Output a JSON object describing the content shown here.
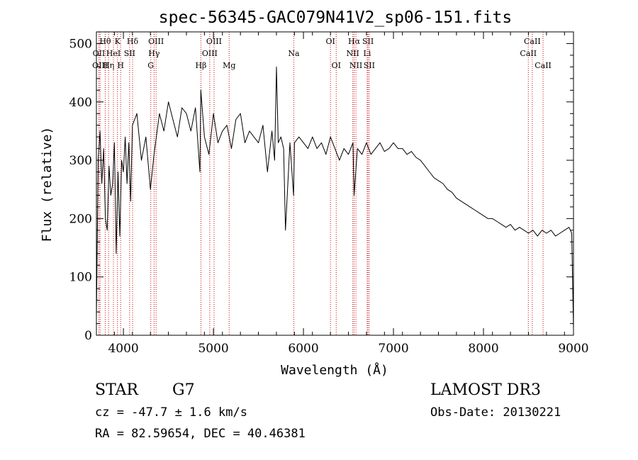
{
  "chart_data": {
    "type": "line",
    "title": "spec-56345-GAC079N41V2_sp06-151.fits",
    "xlabel": "Wavelength (Å)",
    "ylabel": "Flux (relative)",
    "xlim": [
      3700,
      9000
    ],
    "ylim": [
      0,
      520
    ],
    "xticks": [
      4000,
      5000,
      6000,
      7000,
      8000,
      9000
    ],
    "yticks": [
      0,
      100,
      200,
      300,
      400,
      500
    ],
    "grid": false,
    "line_color": "#000000",
    "marker_color": "#cc0000",
    "spectrum": {
      "name": "flux",
      "x": [
        3700,
        3720,
        3740,
        3760,
        3780,
        3800,
        3820,
        3840,
        3860,
        3880,
        3900,
        3920,
        3940,
        3960,
        3980,
        4000,
        4020,
        4040,
        4060,
        4080,
        4100,
        4150,
        4200,
        4250,
        4300,
        4340,
        4400,
        4450,
        4500,
        4550,
        4600,
        4650,
        4700,
        4750,
        4800,
        4850,
        4860,
        4900,
        4950,
        5000,
        5050,
        5100,
        5150,
        5200,
        5250,
        5300,
        5350,
        5400,
        5450,
        5500,
        5550,
        5600,
        5650,
        5680,
        5700,
        5720,
        5750,
        5780,
        5800,
        5850,
        5890,
        5900,
        5950,
        6000,
        6050,
        6100,
        6150,
        6200,
        6250,
        6300,
        6350,
        6400,
        6450,
        6500,
        6550,
        6563,
        6600,
        6650,
        6700,
        6750,
        6800,
        6850,
        6900,
        6950,
        7000,
        7050,
        7100,
        7150,
        7200,
        7250,
        7300,
        7350,
        7400,
        7450,
        7500,
        7550,
        7600,
        7650,
        7700,
        7750,
        7800,
        7850,
        7900,
        7950,
        8000,
        8050,
        8100,
        8150,
        8200,
        8250,
        8300,
        8350,
        8400,
        8450,
        8500,
        8550,
        8600,
        8650,
        8700,
        8750,
        8800,
        8850,
        8900,
        8950,
        8980,
        9000
      ],
      "values": [
        30,
        300,
        350,
        260,
        320,
        200,
        180,
        290,
        240,
        260,
        330,
        140,
        280,
        170,
        300,
        280,
        340,
        260,
        330,
        230,
        360,
        380,
        300,
        340,
        250,
        310,
        380,
        350,
        400,
        370,
        340,
        390,
        380,
        350,
        390,
        280,
        420,
        340,
        310,
        380,
        330,
        350,
        360,
        320,
        370,
        380,
        330,
        350,
        340,
        330,
        360,
        280,
        350,
        300,
        460,
        330,
        340,
        320,
        180,
        330,
        240,
        330,
        340,
        330,
        320,
        340,
        320,
        330,
        310,
        340,
        320,
        300,
        320,
        310,
        330,
        240,
        320,
        310,
        330,
        310,
        320,
        330,
        315,
        320,
        330,
        320,
        320,
        310,
        315,
        305,
        300,
        290,
        280,
        270,
        265,
        260,
        250,
        245,
        235,
        230,
        225,
        220,
        215,
        210,
        205,
        200,
        200,
        195,
        190,
        185,
        190,
        180,
        185,
        180,
        175,
        180,
        170,
        180,
        175,
        180,
        170,
        175,
        180,
        185,
        175,
        10
      ]
    },
    "line_markers": [
      {
        "label": "Hθ",
        "wavelength": 3798,
        "row": 1
      },
      {
        "label": "OII",
        "wavelength": 3727,
        "row": 2
      },
      {
        "label": "OIII",
        "wavelength": 3741,
        "row": 3
      },
      {
        "label": "K",
        "wavelength": 3934,
        "row": 1
      },
      {
        "label": "HeI",
        "wavelength": 3889,
        "row": 2
      },
      {
        "label": "Hη",
        "wavelength": 3835,
        "row": 3
      },
      {
        "label": "Hδ",
        "wavelength": 4102,
        "row": 1
      },
      {
        "label": "SII",
        "wavelength": 4069,
        "row": 2
      },
      {
        "label": "H",
        "wavelength": 3969,
        "row": 3
      },
      {
        "label": "OIII",
        "wavelength": 4363,
        "row": 1
      },
      {
        "label": "Hγ",
        "wavelength": 4341,
        "row": 2
      },
      {
        "label": "G",
        "wavelength": 4304,
        "row": 3
      },
      {
        "label": "OIII",
        "wavelength": 5007,
        "row": 1
      },
      {
        "label": "OIII",
        "wavelength": 4959,
        "row": 2
      },
      {
        "label": "Hβ",
        "wavelength": 4861,
        "row": 3
      },
      {
        "label": "Mg",
        "wavelength": 5175,
        "row": 3
      },
      {
        "label": "Na",
        "wavelength": 5893,
        "row": 2
      },
      {
        "label": "OI",
        "wavelength": 6300,
        "row": 1
      },
      {
        "label": "OI",
        "wavelength": 6364,
        "row": 3
      },
      {
        "label": "Hα",
        "wavelength": 6563,
        "row": 1
      },
      {
        "label": "NII",
        "wavelength": 6548,
        "row": 2
      },
      {
        "label": "NII",
        "wavelength": 6583,
        "row": 3
      },
      {
        "label": "SII",
        "wavelength": 6717,
        "row": 1
      },
      {
        "label": "Li",
        "wavelength": 6708,
        "row": 2
      },
      {
        "label": "SII",
        "wavelength": 6731,
        "row": 3
      },
      {
        "label": "CaII",
        "wavelength": 8542,
        "row": 1
      },
      {
        "label": "CaII",
        "wavelength": 8498,
        "row": 2
      },
      {
        "label": "CaII",
        "wavelength": 8662,
        "row": 3
      }
    ]
  },
  "info": {
    "class_text": "STAR",
    "subclass_text": "G7",
    "survey_text": "LAMOST DR3",
    "cz_text": "cz = -47.7 ± 1.6 km/s",
    "obs_date_text": "Obs-Date: 20130221",
    "coords_text": "RA =  82.59654, DEC =  40.46381"
  }
}
